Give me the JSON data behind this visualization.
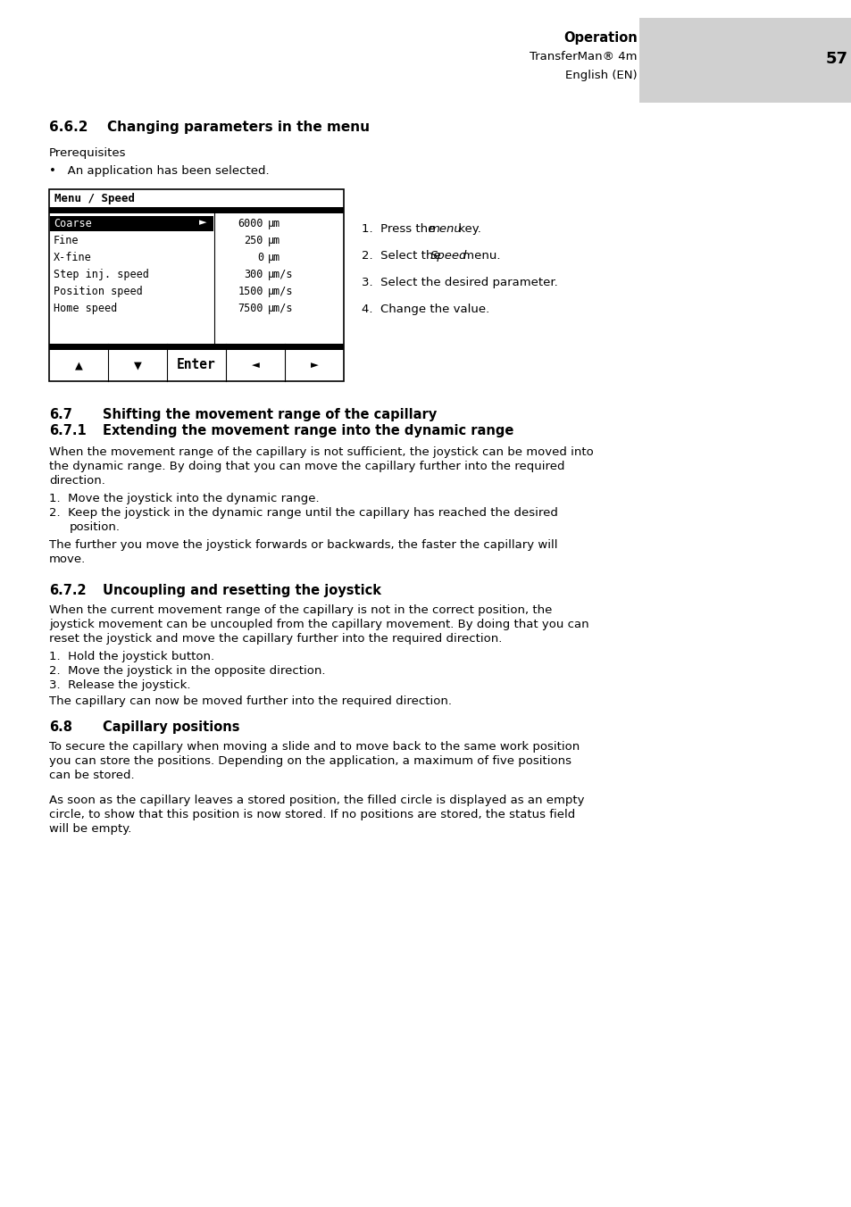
{
  "page_bg": "#ffffff",
  "header_bg": "#d0d0d0",
  "header_text_bold": "Operation",
  "header_text_normal": "TransferMan® 4m",
  "header_page_num": "57",
  "header_lang": "English (EN)",
  "menu_title": "Menu / Speed",
  "menu_rows": [
    {
      "label": "Coarse",
      "value": "6000",
      "unit": "μm",
      "selected": true
    },
    {
      "label": "Fine",
      "value": "250",
      "unit": "μm",
      "selected": false
    },
    {
      "label": "X-fine",
      "value": "0",
      "unit": "μm",
      "selected": false
    },
    {
      "label": "Step inj. speed",
      "value": "300",
      "unit": "μm/s",
      "selected": false
    },
    {
      "label": "Position speed",
      "value": "1500",
      "unit": "μm/s",
      "selected": false
    },
    {
      "label": "Home speed",
      "value": "7500",
      "unit": "μm/s",
      "selected": false
    }
  ],
  "menu_buttons": [
    "▲",
    "▼",
    "Enter",
    "◄",
    "►"
  ],
  "body_font": "DejaVu Sans",
  "mono_font": "DejaVu Sans Mono"
}
